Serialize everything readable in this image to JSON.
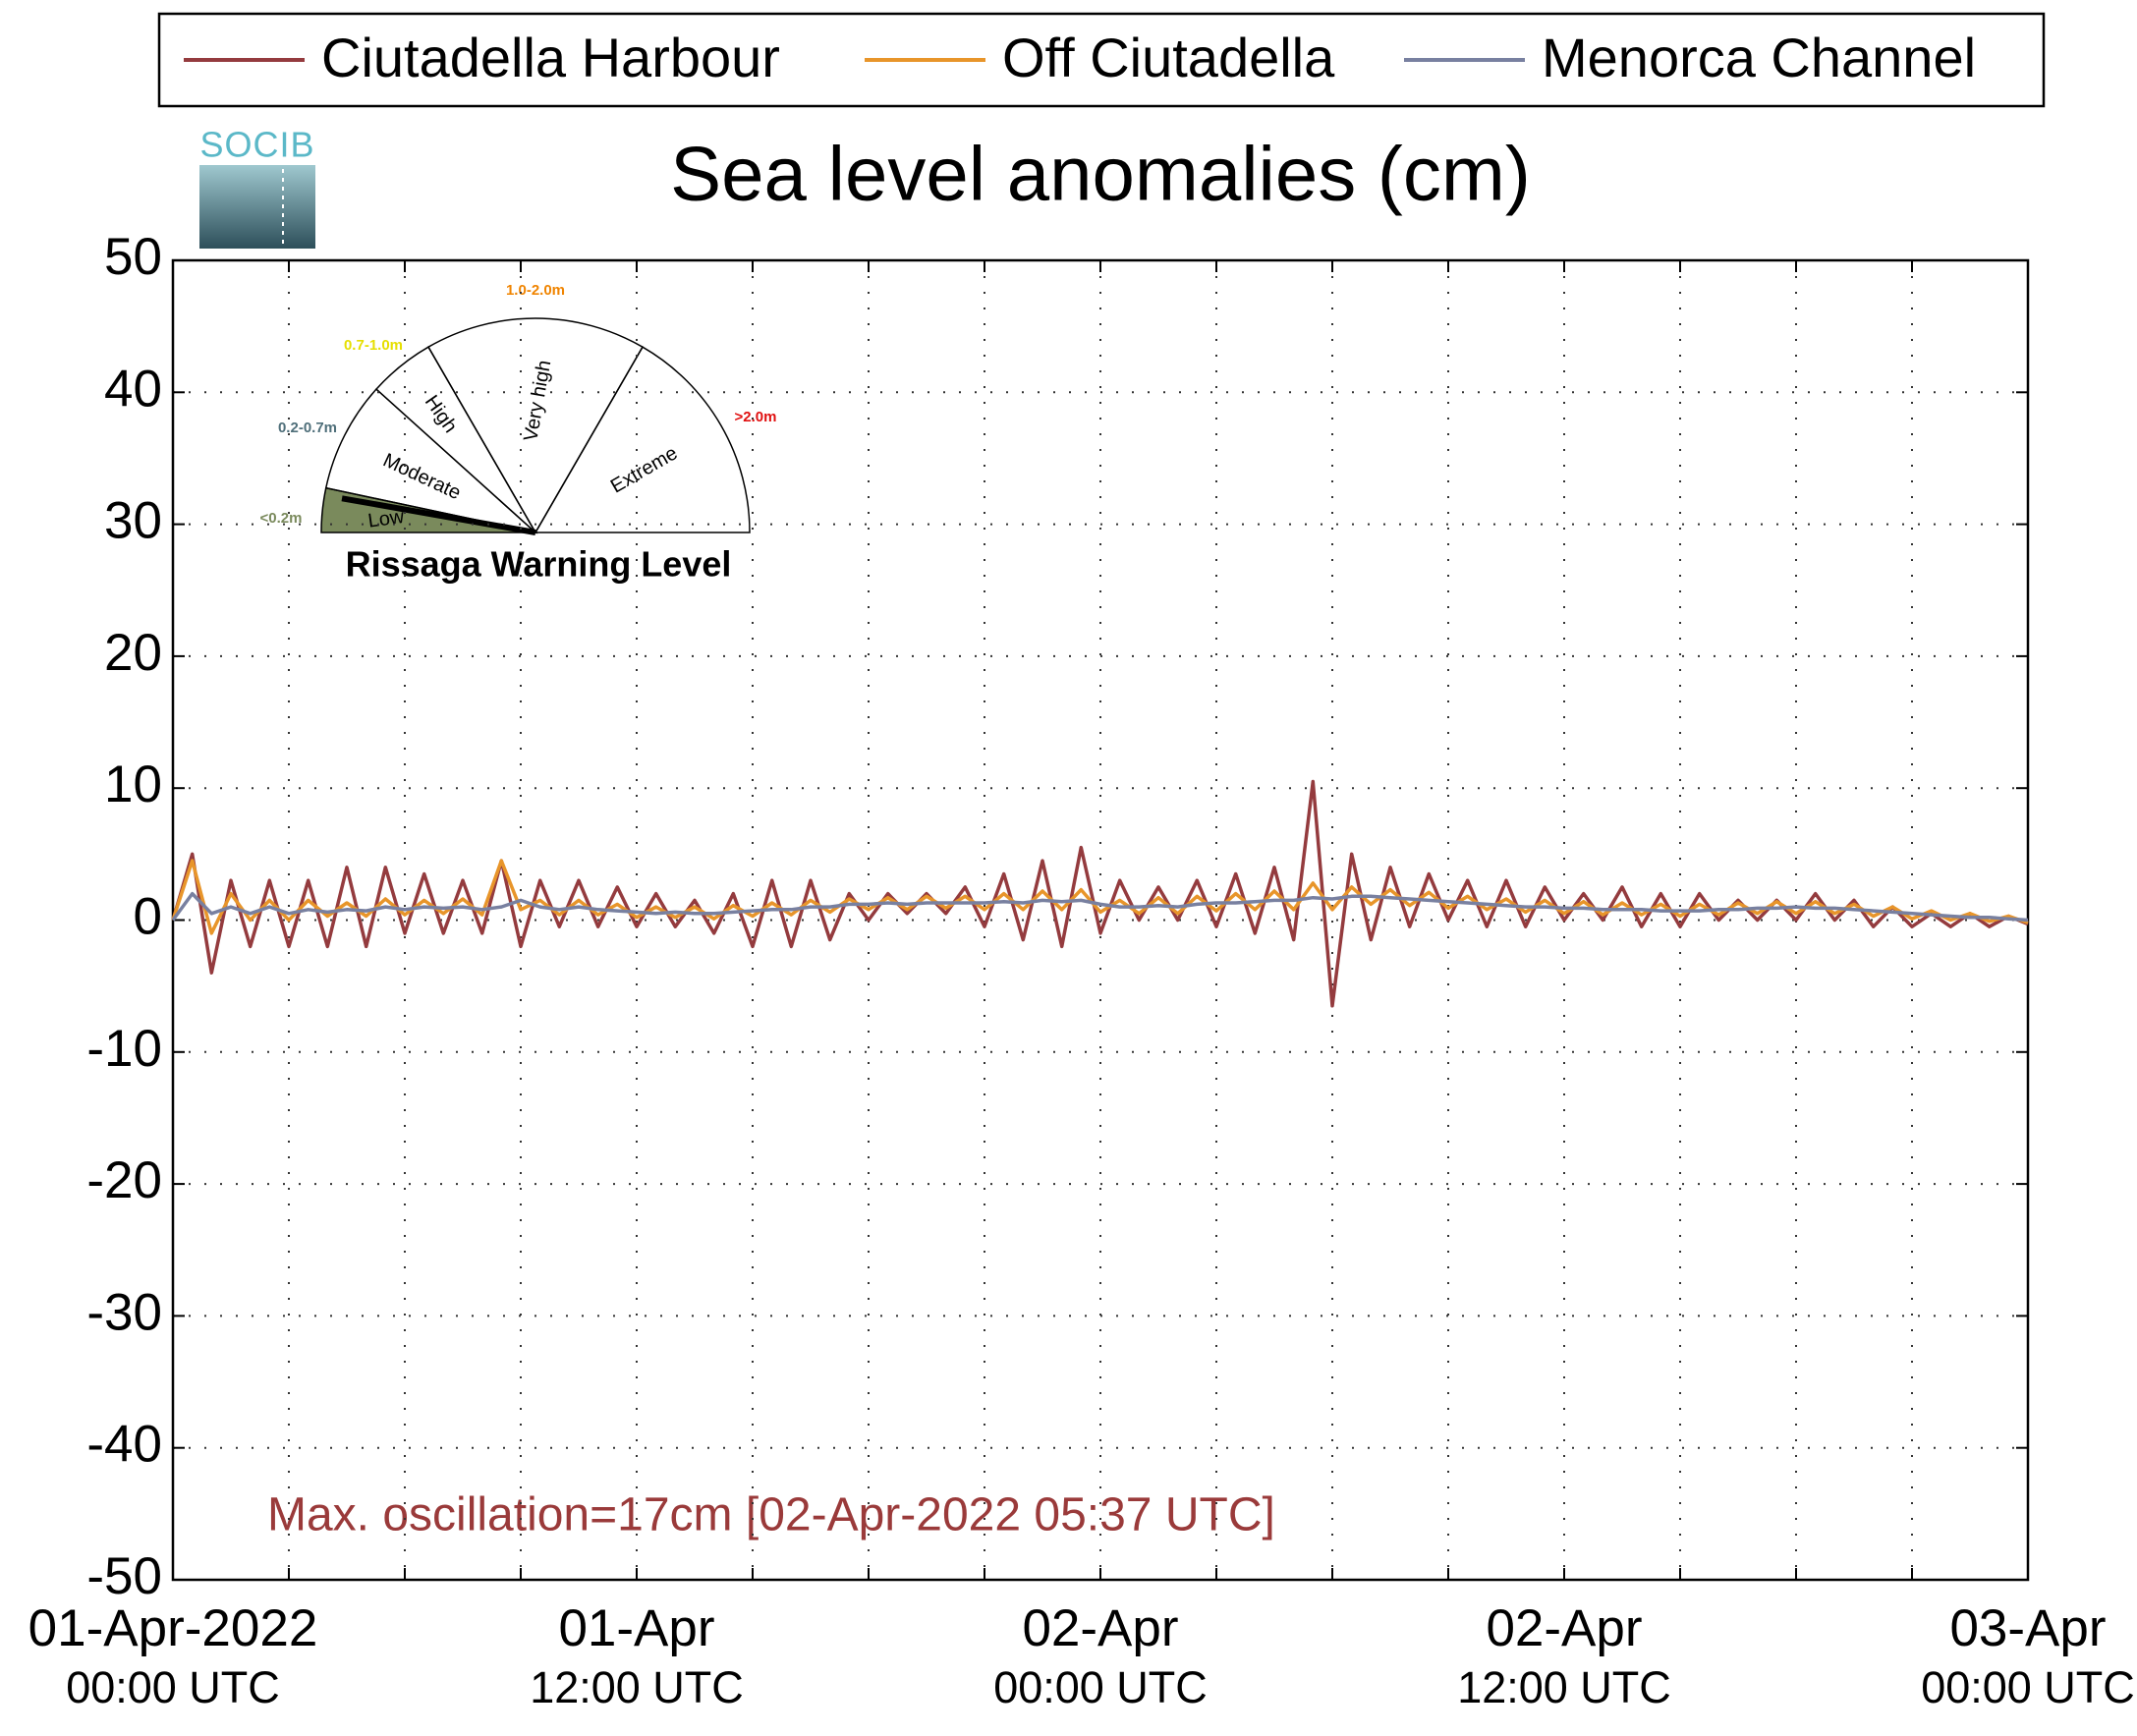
{
  "chart_data": {
    "type": "line",
    "title": "Sea level anomalies (cm)",
    "annotation": "Max. oscillation=17cm [02-Apr-2022 05:37 UTC]",
    "logo": "SOCIB",
    "x": [
      0,
      0.5,
      1,
      1.5,
      2,
      2.5,
      3,
      3.5,
      4,
      4.5,
      5,
      5.5,
      6,
      6.5,
      7,
      7.5,
      8,
      8.5,
      9,
      9.5,
      10,
      10.5,
      11,
      11.5,
      12,
      12.5,
      13,
      13.5,
      14,
      14.5,
      15,
      15.5,
      16,
      16.5,
      17,
      17.5,
      18,
      18.5,
      19,
      19.5,
      20,
      20.5,
      21,
      21.5,
      22,
      22.5,
      23,
      23.5,
      24,
      24.5,
      25,
      25.5,
      26,
      26.5,
      27,
      27.5,
      28,
      28.5,
      29,
      29.5,
      30,
      30.5,
      31,
      31.5,
      32,
      32.5,
      33,
      33.5,
      34,
      34.5,
      35,
      35.5,
      36,
      36.5,
      37,
      37.5,
      38,
      38.5,
      39,
      39.5,
      40,
      40.5,
      41,
      41.5,
      42,
      42.5,
      43,
      43.5,
      44,
      44.5,
      45,
      45.5,
      46,
      46.5,
      47,
      47.5,
      48
    ],
    "series": [
      {
        "name": "Ciutadella Harbour",
        "color": "#943b3e",
        "values": [
          0,
          5,
          -4,
          3,
          -2,
          3,
          -2,
          3,
          -2,
          4,
          -2,
          4,
          -1,
          3.5,
          -1,
          3,
          -1,
          4.5,
          -2,
          3,
          -0.5,
          3,
          -0.5,
          2.5,
          -0.5,
          2,
          -0.5,
          1.5,
          -1,
          2,
          -2,
          3,
          -2,
          3,
          -1.5,
          2,
          0,
          2,
          0.5,
          2,
          0.5,
          2.5,
          -0.5,
          3.5,
          -1.5,
          4.5,
          -2,
          5.5,
          -1,
          3,
          0,
          2.5,
          0,
          3,
          -0.5,
          3.5,
          -1,
          4,
          -1.5,
          10.5,
          -6.5,
          5,
          -1.5,
          4,
          -0.5,
          3.5,
          0,
          3,
          -0.5,
          3,
          -0.5,
          2.5,
          0,
          2,
          0,
          2.5,
          -0.5,
          2,
          -0.5,
          2,
          0,
          1.5,
          0,
          1.5,
          0,
          2,
          0,
          1.5,
          -0.5,
          1,
          -0.5,
          0.5,
          -0.5,
          0.5,
          -0.5,
          0.3,
          -0.3
        ]
      },
      {
        "name": "Off Ciutadella",
        "color": "#e8952a",
        "values": [
          0,
          4.5,
          -1,
          2,
          0,
          1.5,
          0,
          1.5,
          0.3,
          1.3,
          0.3,
          1.6,
          0.4,
          1.5,
          0.5,
          1.6,
          0.4,
          4.5,
          0.8,
          1.5,
          0.4,
          1.5,
          0.4,
          1.2,
          0.2,
          1,
          0.2,
          1,
          0.1,
          1.1,
          0.3,
          1.3,
          0.4,
          1.5,
          0.6,
          1.6,
          0.8,
          1.7,
          0.8,
          1.8,
          0.9,
          1.8,
          0.8,
          2,
          0.8,
          2.2,
          0.8,
          2.3,
          0.6,
          1.5,
          0.5,
          1.7,
          0.5,
          1.8,
          0.7,
          2,
          0.8,
          2.2,
          0.8,
          2.8,
          0.8,
          2.5,
          1.2,
          2.3,
          1.1,
          2.1,
          0.9,
          1.8,
          0.8,
          1.6,
          0.6,
          1.5,
          0.5,
          1.4,
          0.4,
          1.3,
          0.4,
          1.2,
          0.3,
          1.2,
          0.4,
          1.3,
          0.5,
          1.4,
          0.5,
          1.4,
          0.5,
          1.2,
          0.3,
          1,
          0.1,
          0.7,
          0,
          0.5,
          -0.1,
          0.3,
          -0.2
        ]
      },
      {
        "name": "Menorca Channel",
        "color": "#7880a0",
        "values": [
          0,
          2,
          0.5,
          1,
          0.5,
          1,
          0.5,
          0.8,
          0.6,
          0.8,
          0.7,
          1,
          0.8,
          1,
          0.9,
          1,
          0.8,
          1,
          1.5,
          1,
          0.8,
          1,
          0.8,
          0.7,
          0.6,
          0.5,
          0.6,
          0.5,
          0.5,
          0.6,
          0.7,
          0.8,
          0.8,
          1,
          1,
          1.2,
          1.2,
          1.3,
          1.2,
          1.3,
          1.3,
          1.3,
          1.3,
          1.4,
          1.3,
          1.5,
          1.4,
          1.5,
          1.2,
          1,
          1,
          1.1,
          1,
          1.2,
          1.3,
          1.3,
          1.4,
          1.5,
          1.5,
          1.7,
          1.6,
          1.8,
          1.8,
          1.7,
          1.6,
          1.5,
          1.4,
          1.3,
          1.2,
          1.1,
          1,
          1,
          0.9,
          0.9,
          0.8,
          0.8,
          0.8,
          0.7,
          0.7,
          0.7,
          0.8,
          0.8,
          0.9,
          0.9,
          1,
          0.9,
          0.9,
          0.8,
          0.7,
          0.6,
          0.5,
          0.4,
          0.3,
          0.2,
          0.2,
          0.1,
          0
        ]
      }
    ],
    "xlim": [
      0,
      48
    ],
    "xticks": [
      {
        "value": 0,
        "label": [
          "01-Apr-2022",
          "00:00 UTC"
        ]
      },
      {
        "value": 12,
        "label": [
          "01-Apr",
          "12:00 UTC"
        ]
      },
      {
        "value": 24,
        "label": [
          "02-Apr",
          "00:00 UTC"
        ]
      },
      {
        "value": 36,
        "label": [
          "02-Apr",
          "12:00 UTC"
        ]
      },
      {
        "value": 48,
        "label": [
          "03-Apr",
          "00:00 UTC"
        ]
      }
    ],
    "xminor_ticks": [
      3,
      6,
      9,
      15,
      18,
      21,
      27,
      30,
      33,
      39,
      42,
      45
    ],
    "ylim": [
      -50,
      50
    ],
    "yticks": [
      -50,
      -40,
      -30,
      -20,
      -10,
      0,
      10,
      20,
      30,
      40,
      50
    ],
    "grid": true,
    "legend": "top",
    "warning_gauge": {
      "title": "Rissaga Warning Level",
      "levels": [
        {
          "name": "Low",
          "range": "<0.2m",
          "color": "#7a8a5c"
        },
        {
          "name": "Moderate",
          "range": "0.2-0.7m",
          "color": "#4f6f7a"
        },
        {
          "name": "High",
          "range": "0.7-1.0m",
          "color": "#e6df00"
        },
        {
          "name": "Very high",
          "range": "1.0-2.0m",
          "color": "#f08400"
        },
        {
          "name": "Extreme",
          "range": ">2.0m",
          "color": "#e01010"
        }
      ]
    }
  }
}
